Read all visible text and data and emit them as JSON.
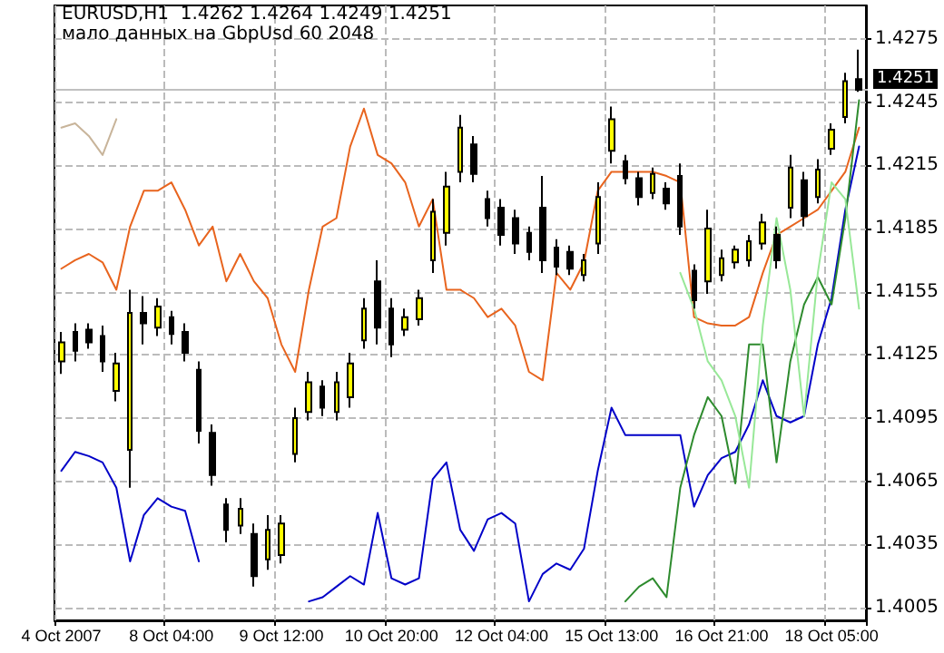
{
  "chart_data": {
    "type": "candlestick",
    "title": "EURUSD,H1  1.4262 1.4264 1.4249 1.4251",
    "subtitle": "мало данных на GbpUsd 60 2048",
    "categories": [
      "4 Oct 2007",
      null,
      null,
      null,
      null,
      null,
      null,
      null,
      "8 Oct 04:00",
      null,
      null,
      null,
      null,
      null,
      null,
      null,
      "9 Oct 12:00",
      null,
      null,
      null,
      null,
      null,
      null,
      null,
      "10 Oct 20:00",
      null,
      null,
      null,
      null,
      null,
      null,
      null,
      "12 Oct 04:00",
      null,
      null,
      null,
      null,
      null,
      null,
      null,
      "15 Oct 13:00",
      null,
      null,
      null,
      null,
      null,
      null,
      null,
      "16 Oct 21:00",
      null,
      null,
      null,
      null,
      null,
      null,
      null,
      "18 Oct 05:00",
      null,
      null
    ],
    "ohlc": [
      [
        1.4122,
        1.4136,
        1.4116,
        1.4131
      ],
      [
        1.4136,
        1.414,
        1.4122,
        1.4127
      ],
      [
        1.4137,
        1.414,
        1.4128,
        1.4131
      ],
      [
        1.4134,
        1.4139,
        1.4117,
        1.4122
      ],
      [
        1.4108,
        1.4126,
        1.4103,
        1.4121
      ],
      [
        1.408,
        1.4156,
        1.4062,
        1.4145
      ],
      [
        1.4145,
        1.4153,
        1.413,
        1.414
      ],
      [
        1.4138,
        1.4152,
        1.4134,
        1.4148
      ],
      [
        1.4143,
        1.4146,
        1.413,
        1.4135
      ],
      [
        1.4136,
        1.414,
        1.4122,
        1.4126
      ],
      [
        1.4118,
        1.4122,
        1.4083,
        1.4089
      ],
      [
        1.4088,
        1.4092,
        1.4063,
        1.4068
      ],
      [
        1.4054,
        1.4057,
        1.4036,
        1.4042
      ],
      [
        1.4044,
        1.4057,
        1.404,
        1.4052
      ],
      [
        1.404,
        1.4045,
        1.4015,
        1.402
      ],
      [
        1.4028,
        1.4049,
        1.4023,
        1.4042
      ],
      [
        1.403,
        1.4049,
        1.4026,
        1.4045
      ],
      [
        1.4078,
        1.41,
        1.4074,
        1.4095
      ],
      [
        1.4098,
        1.4117,
        1.4094,
        1.4112
      ],
      [
        1.411,
        1.4113,
        1.4096,
        1.41
      ],
      [
        1.4098,
        1.4117,
        1.4094,
        1.4112
      ],
      [
        1.4105,
        1.4126,
        1.41,
        1.4121
      ],
      [
        1.4132,
        1.4152,
        1.4128,
        1.4147
      ],
      [
        1.416,
        1.417,
        1.413,
        1.4138
      ],
      [
        1.4147,
        1.4152,
        1.4124,
        1.413
      ],
      [
        1.4137,
        1.4147,
        1.4134,
        1.4143
      ],
      [
        1.4142,
        1.4156,
        1.4139,
        1.4152
      ],
      [
        1.417,
        1.4199,
        1.4164,
        1.4193
      ],
      [
        1.4183,
        1.4212,
        1.4177,
        1.4205
      ],
      [
        1.4212,
        1.4239,
        1.4207,
        1.4233
      ],
      [
        1.4225,
        1.4229,
        1.4207,
        1.4211
      ],
      [
        1.4199,
        1.4203,
        1.4186,
        1.419
      ],
      [
        1.4195,
        1.4199,
        1.4177,
        1.4182
      ],
      [
        1.419,
        1.4194,
        1.4173,
        1.4178
      ],
      [
        1.4183,
        1.4186,
        1.417,
        1.4174
      ],
      [
        1.4195,
        1.421,
        1.4164,
        1.417
      ],
      [
        1.4176,
        1.418,
        1.4163,
        1.4167
      ],
      [
        1.4174,
        1.4177,
        1.4163,
        1.4166
      ],
      [
        1.4163,
        1.4173,
        1.416,
        1.417
      ],
      [
        1.4178,
        1.4207,
        1.4173,
        1.42
      ],
      [
        1.4222,
        1.4243,
        1.4216,
        1.4237
      ],
      [
        1.4217,
        1.422,
        1.4206,
        1.4209
      ],
      [
        1.4209,
        1.4212,
        1.4196,
        1.42
      ],
      [
        1.4202,
        1.4214,
        1.4199,
        1.4211
      ],
      [
        1.4204,
        1.4207,
        1.4194,
        1.4197
      ],
      [
        1.421,
        1.4216,
        1.4182,
        1.4186
      ],
      [
        1.4165,
        1.4168,
        1.4147,
        1.4151
      ],
      [
        1.416,
        1.4194,
        1.4154,
        1.4185
      ],
      [
        1.4163,
        1.4175,
        1.416,
        1.4171
      ],
      [
        1.4169,
        1.4177,
        1.4166,
        1.4175
      ],
      [
        1.417,
        1.4182,
        1.4167,
        1.4179
      ],
      [
        1.4178,
        1.4192,
        1.4175,
        1.4188
      ],
      [
        1.4182,
        1.4186,
        1.4166,
        1.417
      ],
      [
        1.4195,
        1.422,
        1.419,
        1.4214
      ],
      [
        1.4208,
        1.4212,
        1.4186,
        1.4191
      ],
      [
        1.42,
        1.4218,
        1.4197,
        1.4213
      ],
      [
        1.4223,
        1.4235,
        1.422,
        1.4232
      ],
      [
        1.4238,
        1.4259,
        1.4235,
        1.4255
      ],
      [
        1.4256,
        1.427,
        1.425,
        1.4251
      ]
    ],
    "colors": [
      "#ffff00",
      "#000000",
      "#000000",
      "#000000",
      "#ffff00",
      "#ffff00",
      "#000000",
      "#ffff00",
      "#000000",
      "#000000",
      "#000000",
      "#000000",
      "#000000",
      "#ffff00",
      "#000000",
      "#ffff00",
      "#ffff00",
      "#ffff00",
      "#ffff00",
      "#000000",
      "#ffff00",
      "#ffff00",
      "#ffff00",
      "#000000",
      "#000000",
      "#ffff00",
      "#ffff00",
      "#ffff00",
      "#ffff00",
      "#ffff00",
      "#000000",
      "#000000",
      "#000000",
      "#000000",
      "#000000",
      "#000000",
      "#000000",
      "#000000",
      "#ffff00",
      "#ffff00",
      "#ffff00",
      "#000000",
      "#000000",
      "#ffff00",
      "#000000",
      "#000000",
      "#000000",
      "#ffff00",
      "#ffff00",
      "#ffff00",
      "#ffff00",
      "#ffff00",
      "#000000",
      "#ffff00",
      "#000000",
      "#ffff00",
      "#ffff00",
      "#ffff00",
      "#000000"
    ],
    "series": [
      {
        "type": "line",
        "color": "#e8641e",
        "values": [
          1.4166,
          1.417,
          1.4173,
          1.4169,
          1.4156,
          1.4186,
          1.4203,
          1.4203,
          1.4207,
          1.4194,
          1.4177,
          1.4186,
          1.416,
          1.4173,
          1.416,
          1.4152,
          1.413,
          1.4117,
          1.4156,
          1.4186,
          1.419,
          1.4224,
          1.4242,
          1.422,
          1.4216,
          1.4207,
          1.4186,
          1.4199,
          1.4156,
          1.4156,
          1.4152,
          1.4143,
          1.4147,
          1.4139,
          1.4117,
          1.4113,
          1.4164,
          1.4156,
          1.4169,
          1.4203,
          1.4212,
          1.4212,
          1.4212,
          1.4212,
          1.421,
          1.4207,
          1.4143,
          1.414,
          1.4139,
          1.4139,
          1.4143,
          1.4164,
          1.4182,
          1.4186,
          1.419,
          1.4194,
          1.4203,
          1.4212,
          1.4233
        ]
      },
      {
        "type": "line",
        "color": "#0000c8",
        "values": [
          1.407,
          1.4079,
          1.4077,
          1.4074,
          1.4062,
          1.4027,
          1.4049,
          1.4057,
          1.4053,
          1.4051,
          1.4027,
          null,
          null,
          null,
          null,
          null,
          null,
          null,
          1.4008,
          1.401,
          1.4015,
          1.402,
          1.4016,
          1.405,
          1.4019,
          1.4016,
          1.4019,
          1.4066,
          1.4074,
          1.4042,
          1.4032,
          1.4047,
          1.405,
          1.4045,
          1.4008,
          1.4021,
          1.4026,
          1.4023,
          1.4033,
          1.407,
          1.41,
          1.4087,
          1.4087,
          1.4087,
          1.4087,
          1.4087,
          1.4053,
          1.4068,
          1.4076,
          1.4079,
          1.4092,
          1.4113,
          1.4096,
          1.4093,
          1.4096,
          1.413,
          1.4152,
          1.4194,
          1.4224
        ]
      },
      {
        "type": "line",
        "color": "#2e8b2e",
        "values": [
          null,
          null,
          null,
          null,
          null,
          null,
          null,
          null,
          null,
          null,
          null,
          null,
          null,
          null,
          null,
          null,
          null,
          null,
          null,
          null,
          null,
          null,
          null,
          null,
          null,
          null,
          null,
          null,
          null,
          null,
          null,
          null,
          null,
          null,
          null,
          null,
          null,
          null,
          null,
          null,
          null,
          1.4008,
          1.4015,
          1.4019,
          1.401,
          1.4062,
          1.4087,
          1.4105,
          1.4096,
          1.4064,
          1.413,
          1.413,
          1.4074,
          1.4122,
          1.4149,
          1.4162,
          1.4149,
          1.419,
          1.4246
        ]
      },
      {
        "type": "line",
        "color": "#98e898",
        "values": [
          null,
          null,
          null,
          null,
          null,
          null,
          null,
          null,
          null,
          null,
          null,
          null,
          null,
          null,
          null,
          null,
          null,
          null,
          null,
          null,
          null,
          null,
          null,
          null,
          null,
          null,
          null,
          null,
          null,
          null,
          null,
          null,
          null,
          null,
          null,
          null,
          null,
          null,
          null,
          null,
          null,
          null,
          null,
          null,
          null,
          1.4164,
          1.4147,
          1.4122,
          1.4113,
          1.4096,
          1.4062,
          1.4139,
          1.419,
          1.4156,
          1.4096,
          1.4164,
          1.4207,
          1.4199,
          1.4147
        ]
      },
      {
        "type": "line",
        "color": "#c8b49a",
        "values": [
          1.4233,
          1.4235,
          1.4229,
          1.422,
          1.4237,
          null,
          null,
          null,
          null,
          null,
          null,
          null,
          null,
          null,
          null,
          null,
          null,
          null,
          null,
          null,
          null,
          null,
          null,
          null,
          null,
          null,
          null,
          null,
          null,
          null,
          null,
          null,
          null,
          null,
          null,
          null,
          null,
          null,
          null,
          null,
          null,
          null,
          null,
          null,
          null,
          null,
          null,
          null,
          null,
          null,
          null,
          null,
          null,
          null,
          null,
          null,
          null,
          null,
          null
        ]
      }
    ],
    "ylim": [
      1.3999,
      1.4291
    ],
    "yticks": [
      1.4005,
      1.4035,
      1.4065,
      1.4095,
      1.4125,
      1.4155,
      1.4185,
      1.4215,
      1.4245,
      1.4275
    ],
    "ref_lines": [
      {
        "axis": "y",
        "value": 1.4251,
        "label": "1.4251",
        "color": "#c0c0c0"
      }
    ],
    "grid": true,
    "legend": false,
    "marker": "none",
    "line_style": "solid"
  }
}
